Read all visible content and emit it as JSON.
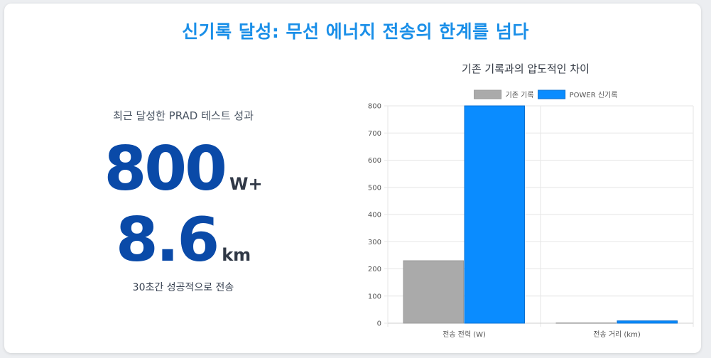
{
  "page": {
    "title": "신기록 달성: 무선 에너지 전송의 한계를 넘다"
  },
  "left": {
    "subtitle": "최근 달성한 PRAD 테스트 성과",
    "stat1_value": "800",
    "stat1_unit": "W+",
    "stat2_value": "8.6",
    "stat2_unit": "km",
    "footer": "30초간 성공적으로 전송"
  },
  "chart_data": {
    "type": "bar",
    "title": "기존 기록과의 압도적인 차이",
    "categories": [
      "전송 전력 (W)",
      "전송 거리 (km)"
    ],
    "series": [
      {
        "name": "기존 기록",
        "values": [
          230,
          1
        ],
        "color": "#aaaaaa"
      },
      {
        "name": "POWER 신기록",
        "values": [
          800,
          8.6
        ],
        "color": "#0a8cff"
      }
    ],
    "ylim": [
      0,
      800
    ],
    "yticks": [
      0,
      100,
      200,
      300,
      400,
      500,
      600,
      700,
      800
    ],
    "grid": true,
    "legend_position": "top"
  }
}
